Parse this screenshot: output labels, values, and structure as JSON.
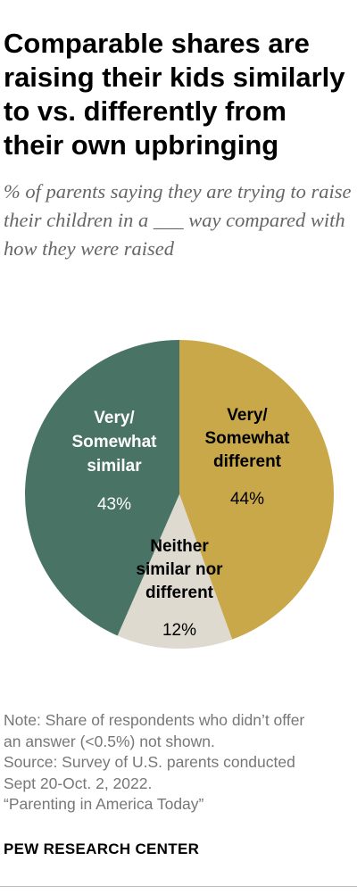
{
  "title": "Comparable shares are raising their kids similarly to vs. differently from their own upbringing",
  "subtitle": "% of parents saying they are trying to raise their children in a ___ way compared with how they were raised",
  "chart_data": {
    "type": "pie",
    "slices": [
      {
        "label": "Very/ Somewhat different",
        "label_lines": [
          "Very/",
          "Somewhat",
          "different"
        ],
        "value": 44,
        "value_label": "44%",
        "color": "#c9a84a",
        "text_color": "#000000"
      },
      {
        "label": "Neither similar nor different",
        "label_lines": [
          "Neither",
          "similar nor",
          "different"
        ],
        "value": 12,
        "value_label": "12%",
        "color": "#dedad0",
        "text_color": "#000000"
      },
      {
        "label": "Very/ Somewhat similar",
        "label_lines": [
          "Very/",
          "Somewhat",
          "similar"
        ],
        "value": 43,
        "value_label": "43%",
        "color": "#487365",
        "text_color": "#ffffff"
      }
    ]
  },
  "notes": {
    "note": [
      "Note: Share of respondents who didn’t offer",
      "an answer (<0.5%) not shown."
    ],
    "source": [
      "Source: Survey of U.S. parents conducted",
      "Sept 20-Oct. 2, 2022."
    ],
    "report": "“Parenting in America Today”"
  },
  "logo": "PEW RESEARCH CENTER"
}
